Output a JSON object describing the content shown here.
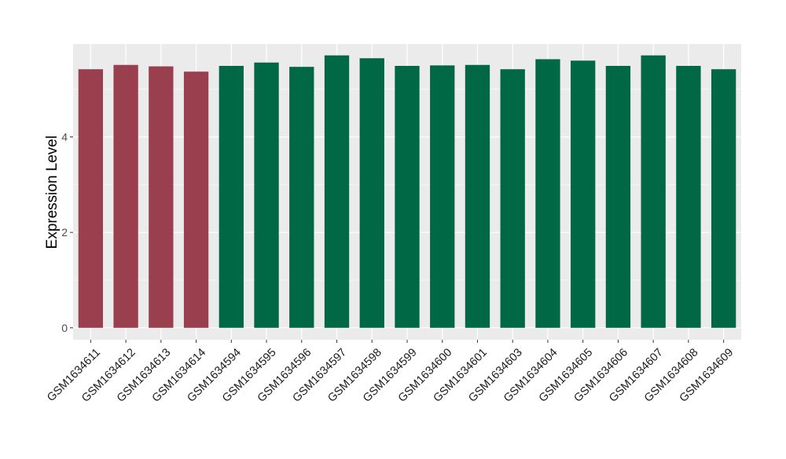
{
  "chart_data": {
    "type": "bar",
    "title": "",
    "xlabel": "",
    "ylabel": "Expression Level",
    "ylim": [
      -0.25,
      5.95
    ],
    "yticks": [
      0,
      2,
      4
    ],
    "grid": true,
    "legend": "none",
    "categories": [
      "GSM1634611",
      "GSM1634612",
      "GSM1634613",
      "GSM1634614",
      "GSM1634594",
      "GSM1634595",
      "GSM1634596",
      "GSM1634597",
      "GSM1634598",
      "GSM1634599",
      "GSM1634600",
      "GSM1634601",
      "GSM1634603",
      "GSM1634604",
      "GSM1634605",
      "GSM1634606",
      "GSM1634607",
      "GSM1634608",
      "GSM1634609"
    ],
    "values": [
      5.42,
      5.51,
      5.48,
      5.37,
      5.49,
      5.56,
      5.47,
      5.71,
      5.65,
      5.49,
      5.5,
      5.51,
      5.42,
      5.63,
      5.6,
      5.49,
      5.71,
      5.49,
      5.42
    ],
    "groups": [
      "a",
      "a",
      "a",
      "a",
      "b",
      "b",
      "b",
      "b",
      "b",
      "b",
      "b",
      "b",
      "b",
      "b",
      "b",
      "b",
      "b",
      "b",
      "b"
    ],
    "group_colors": {
      "a": "#9a3f4e",
      "b": "#006845"
    },
    "panel_background": "#ebebeb",
    "gridline_color": "#ffffff"
  }
}
